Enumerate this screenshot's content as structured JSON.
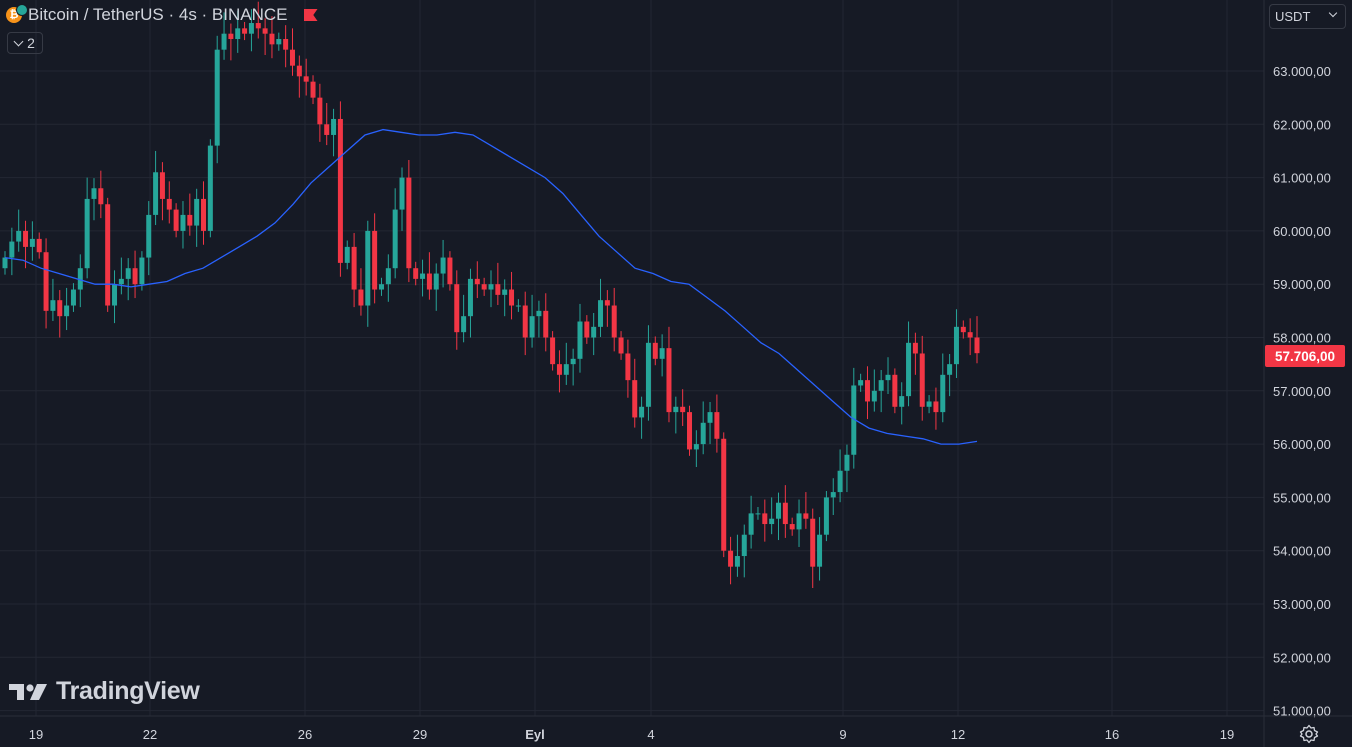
{
  "header": {
    "symbol_title": "Bitcoin / TetherUS · 4s · BINANCE",
    "coin_icon": "bitcoin-icon",
    "legend_count": "2"
  },
  "toolbar": {
    "currency_label": "USDT"
  },
  "branding": {
    "logo_text": "TradingView"
  },
  "colors": {
    "background": "#161a25",
    "grid": "#232733",
    "up": "#26a69a",
    "down": "#f23645",
    "moving_average": "#2962ff",
    "axis_text": "#d1d4dc"
  },
  "chart_data": {
    "type": "candlestick",
    "title": "Bitcoin / TetherUS · 4s · BINANCE",
    "xlabel": "",
    "ylabel": "",
    "x_axis": {
      "ticks": [
        "19",
        "22",
        "26",
        "29",
        "Eyl",
        "4",
        "9",
        "12",
        "16",
        "19"
      ]
    },
    "y_axis": {
      "ylim": [
        51000,
        63700
      ],
      "ticks": [
        "63.000,00",
        "62.000,00",
        "61.000,00",
        "60.000,00",
        "59.000,00",
        "58.000,00",
        "57.000,00",
        "56.000,00",
        "55.000,00",
        "54.000,00",
        "53.000,00",
        "52.000,00",
        "51.000,00"
      ]
    },
    "last_price": "57.706,00",
    "grid": true,
    "ohlc_closes": [
      59500,
      59800,
      60000,
      59700,
      59850,
      59600,
      58500,
      58700,
      58400,
      58600,
      58900,
      59300,
      60600,
      60800,
      60500,
      58600,
      59000,
      59100,
      59300,
      59000,
      59500,
      60300,
      61100,
      60600,
      60400,
      60000,
      60300,
      60100,
      60600,
      60000,
      61600,
      63400,
      63700,
      63600,
      63800,
      63700,
      63900,
      63800,
      63700,
      63500,
      63600,
      63400,
      63100,
      62900,
      62800,
      62500,
      62000,
      61800,
      62100,
      59400,
      59700,
      58900,
      58600,
      60000,
      58900,
      59000,
      59300,
      60400,
      61000,
      59300,
      59100,
      59200,
      58900,
      59200,
      59500,
      59000,
      58100,
      58400,
      59100,
      59000,
      58900,
      59000,
      58800,
      58900,
      58600,
      58600,
      58000,
      58400,
      58500,
      58000,
      57500,
      57300,
      57500,
      57600,
      58300,
      58000,
      58200,
      58700,
      58600,
      58000,
      57700,
      57200,
      56500,
      56700,
      57900,
      57600,
      57800,
      56600,
      56700,
      56600,
      55900,
      56000,
      56400,
      56600,
      56100,
      54000,
      53700,
      53900,
      54300,
      54700,
      54700,
      54500,
      54600,
      54900,
      54500,
      54400,
      54700,
      54600,
      53700,
      54300,
      55000,
      55100,
      55500,
      55800,
      57100,
      57200,
      56800,
      57000,
      57200,
      57300,
      56700,
      56900,
      57900,
      57700,
      56700,
      56800,
      56600,
      57300,
      57500,
      58200,
      58100,
      58000,
      57706
    ],
    "series": [
      {
        "name": "",
        "type": "moving-average",
        "values": [
          59500,
          59450,
          59300,
          59200,
          59100,
          59000,
          59000,
          58950,
          59000,
          59050,
          59200,
          59300,
          59500,
          59700,
          59900,
          60150,
          60500,
          60900,
          61200,
          61500,
          61800,
          61900,
          61850,
          61800,
          61800,
          61850,
          61800,
          61600,
          61400,
          61200,
          61000,
          60700,
          60300,
          59900,
          59600,
          59300,
          59200,
          59050,
          59000,
          58750,
          58500,
          58200,
          57900,
          57700,
          57400,
          57100,
          56800,
          56500,
          56300,
          56200,
          56150,
          56100,
          56000,
          56000,
          56050
        ]
      }
    ]
  }
}
